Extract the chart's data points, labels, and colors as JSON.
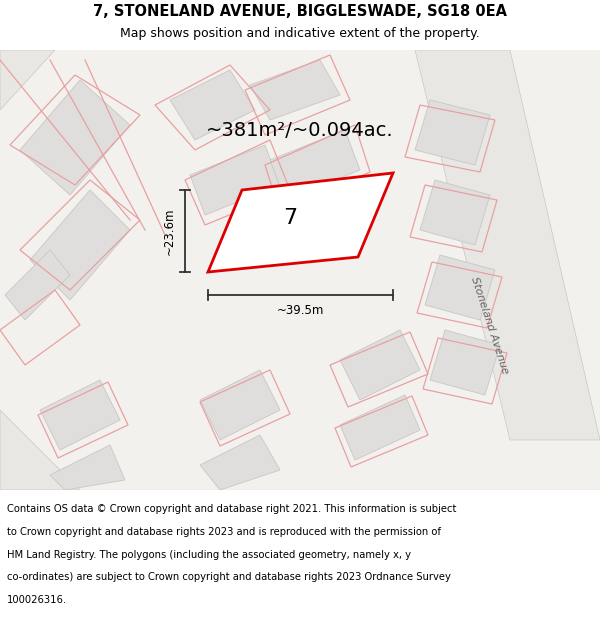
{
  "title": "7, STONELAND AVENUE, BIGGLESWADE, SG18 0EA",
  "subtitle": "Map shows position and indicative extent of the property.",
  "area_text": "~381m²/~0.094ac.",
  "width_label": "~39.5m",
  "height_label": "~23.6m",
  "property_number": "7",
  "street_label": "Stoneland Avenue",
  "footer_lines": [
    "Contains OS data © Crown copyright and database right 2021. This information is subject",
    "to Crown copyright and database rights 2023 and is reproduced with the permission of",
    "HM Land Registry. The polygons (including the associated geometry, namely x, y",
    "co-ordinates) are subject to Crown copyright and database rights 2023 Ordnance Survey",
    "100026316."
  ],
  "map_bg": "#f2f1ee",
  "building_fill": "#e0dedd",
  "building_edge": "#c8c7c4",
  "road_fill": "#ffffff",
  "pink": "#e8a0a0",
  "red": "#dd0000",
  "dim_color": "#333333",
  "title_fontsize": 10.5,
  "subtitle_fontsize": 9,
  "area_fontsize": 14,
  "footer_fontsize": 7.2,
  "prop_label_fontsize": 16,
  "dim_label_fontsize": 8.5,
  "street_fontsize": 8
}
